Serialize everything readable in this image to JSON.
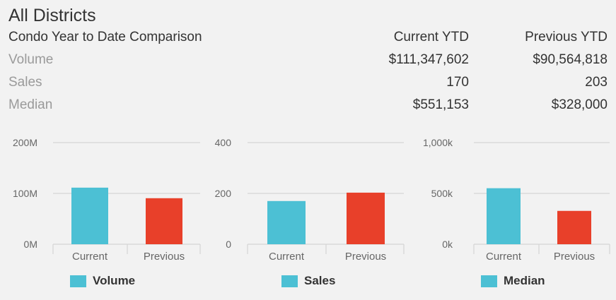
{
  "title": "All Districts",
  "table": {
    "header": {
      "label": "Condo Year to Date Comparison",
      "current": "Current YTD",
      "previous": "Previous YTD"
    },
    "rows": [
      {
        "label": "Volume",
        "current": "$111,347,602",
        "previous": "$90,564,818"
      },
      {
        "label": "Sales",
        "current": "170",
        "previous": "203"
      },
      {
        "label": "Median",
        "current": "$551,153",
        "previous": "$328,000"
      }
    ]
  },
  "colors": {
    "current": "#4cc0d4",
    "previous": "#e8402a",
    "grid": "#cfcfcf",
    "axis_text": "#666666"
  },
  "chart_data": [
    {
      "type": "bar",
      "categories": [
        "Current",
        "Previous"
      ],
      "series": [
        {
          "name": "Volume",
          "values": [
            111347602,
            90564818
          ]
        }
      ],
      "ylim": [
        0,
        200000000
      ],
      "yticks": [
        0,
        100000000,
        200000000
      ],
      "ytick_labels": [
        "0M",
        "100M",
        "200M"
      ],
      "legend": "Volume",
      "grid": true,
      "legend_position": "bottom"
    },
    {
      "type": "bar",
      "categories": [
        "Current",
        "Previous"
      ],
      "series": [
        {
          "name": "Sales",
          "values": [
            170,
            203
          ]
        }
      ],
      "ylim": [
        0,
        400
      ],
      "yticks": [
        0,
        200,
        400
      ],
      "ytick_labels": [
        "0",
        "200",
        "400"
      ],
      "legend": "Sales",
      "grid": true,
      "legend_position": "bottom"
    },
    {
      "type": "bar",
      "categories": [
        "Current",
        "Previous"
      ],
      "series": [
        {
          "name": "Median",
          "values": [
            551153,
            328000
          ]
        }
      ],
      "ylim": [
        0,
        1000000
      ],
      "yticks": [
        0,
        500000,
        1000000
      ],
      "ytick_labels": [
        "0k",
        "500k",
        "1,000k"
      ],
      "legend": "Median",
      "grid": true,
      "legend_position": "bottom"
    }
  ]
}
